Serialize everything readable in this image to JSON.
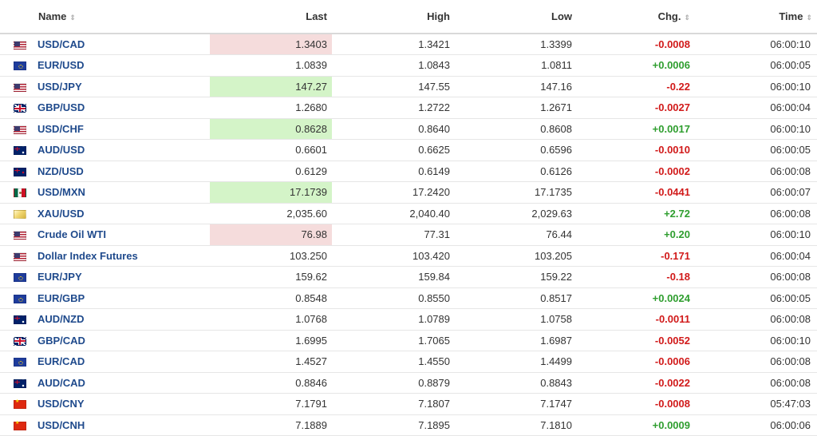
{
  "colors": {
    "link": "#1f4a8c",
    "positive": "#2f9e2f",
    "negative": "#d11a1a",
    "highlight_up": "#d4f4c8",
    "highlight_down": "#f5dcdc"
  },
  "header": {
    "name": "Name",
    "last": "Last",
    "high": "High",
    "low": "Low",
    "chg": "Chg.",
    "time": "Time",
    "sort_icon": "⇕"
  },
  "rows": [
    {
      "flag": "us-flag-icon",
      "name": "USD/CAD",
      "last": "1.3403",
      "high": "1.3421",
      "low": "1.3399",
      "chg": "-0.0008",
      "time": "06:00:10",
      "highlight": "down"
    },
    {
      "flag": "eu-flag-icon",
      "name": "EUR/USD",
      "last": "1.0839",
      "high": "1.0843",
      "low": "1.0811",
      "chg": "+0.0006",
      "time": "06:00:05",
      "highlight": ""
    },
    {
      "flag": "us-flag-icon",
      "name": "USD/JPY",
      "last": "147.27",
      "high": "147.55",
      "low": "147.16",
      "chg": "-0.22",
      "time": "06:00:10",
      "highlight": "up"
    },
    {
      "flag": "uk-flag-icon",
      "name": "GBP/USD",
      "last": "1.2680",
      "high": "1.2722",
      "low": "1.2671",
      "chg": "-0.0027",
      "time": "06:00:04",
      "highlight": ""
    },
    {
      "flag": "us-flag-icon",
      "name": "USD/CHF",
      "last": "0.8628",
      "high": "0.8640",
      "low": "0.8608",
      "chg": "+0.0017",
      "time": "06:00:10",
      "highlight": "up"
    },
    {
      "flag": "au-flag-icon",
      "name": "AUD/USD",
      "last": "0.6601",
      "high": "0.6625",
      "low": "0.6596",
      "chg": "-0.0010",
      "time": "06:00:05",
      "highlight": ""
    },
    {
      "flag": "nz-flag-icon",
      "name": "NZD/USD",
      "last": "0.6129",
      "high": "0.6149",
      "low": "0.6126",
      "chg": "-0.0002",
      "time": "06:00:08",
      "highlight": ""
    },
    {
      "flag": "mx-flag-icon",
      "name": "USD/MXN",
      "last": "17.1739",
      "high": "17.2420",
      "low": "17.1735",
      "chg": "-0.0441",
      "time": "06:00:07",
      "highlight": "up"
    },
    {
      "flag": "gold-icon",
      "name": "XAU/USD",
      "last": "2,035.60",
      "high": "2,040.40",
      "low": "2,029.63",
      "chg": "+2.72",
      "time": "06:00:08",
      "highlight": ""
    },
    {
      "flag": "us-flag-icon",
      "name": "Crude Oil WTI",
      "last": "76.98",
      "high": "77.31",
      "low": "76.44",
      "chg": "+0.20",
      "time": "06:00:10",
      "highlight": "down"
    },
    {
      "flag": "us-flag-icon",
      "name": "Dollar Index Futures",
      "last": "103.250",
      "high": "103.420",
      "low": "103.205",
      "chg": "-0.171",
      "time": "06:00:04",
      "highlight": ""
    },
    {
      "flag": "eu-flag-icon",
      "name": "EUR/JPY",
      "last": "159.62",
      "high": "159.84",
      "low": "159.22",
      "chg": "-0.18",
      "time": "06:00:08",
      "highlight": ""
    },
    {
      "flag": "eu-flag-icon",
      "name": "EUR/GBP",
      "last": "0.8548",
      "high": "0.8550",
      "low": "0.8517",
      "chg": "+0.0024",
      "time": "06:00:05",
      "highlight": ""
    },
    {
      "flag": "au-flag-icon",
      "name": "AUD/NZD",
      "last": "1.0768",
      "high": "1.0789",
      "low": "1.0758",
      "chg": "-0.0011",
      "time": "06:00:08",
      "highlight": ""
    },
    {
      "flag": "uk-flag-icon",
      "name": "GBP/CAD",
      "last": "1.6995",
      "high": "1.7065",
      "low": "1.6987",
      "chg": "-0.0052",
      "time": "06:00:10",
      "highlight": ""
    },
    {
      "flag": "eu-flag-icon",
      "name": "EUR/CAD",
      "last": "1.4527",
      "high": "1.4550",
      "low": "1.4499",
      "chg": "-0.0006",
      "time": "06:00:08",
      "highlight": ""
    },
    {
      "flag": "au-flag-icon",
      "name": "AUD/CAD",
      "last": "0.8846",
      "high": "0.8879",
      "low": "0.8843",
      "chg": "-0.0022",
      "time": "06:00:08",
      "highlight": ""
    },
    {
      "flag": "cn-flag-icon",
      "name": "USD/CNY",
      "last": "7.1791",
      "high": "7.1807",
      "low": "7.1747",
      "chg": "-0.0008",
      "time": "05:47:03",
      "highlight": ""
    },
    {
      "flag": "cn-flag-icon",
      "name": "USD/CNH",
      "last": "7.1889",
      "high": "7.1895",
      "low": "7.1810",
      "chg": "+0.0009",
      "time": "06:00:06",
      "highlight": ""
    }
  ]
}
